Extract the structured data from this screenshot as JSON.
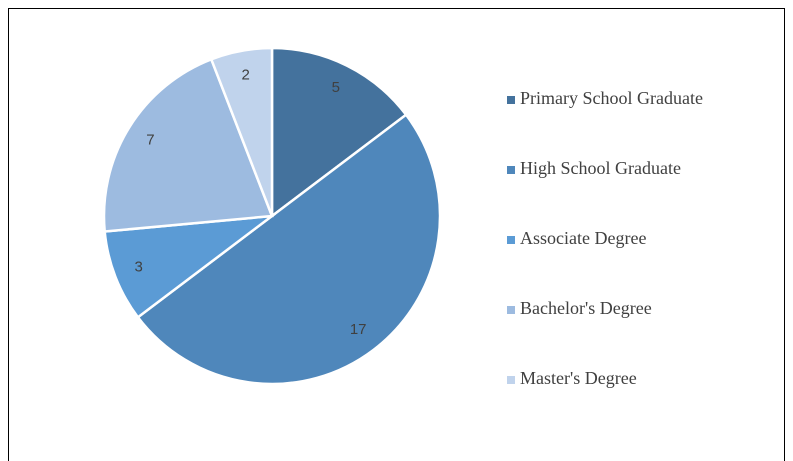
{
  "chart_data": {
    "type": "pie",
    "categories": [
      "Primary School Graduate",
      "High School Graduate",
      "Associate Degree",
      "Bachelor's Degree",
      "Master's Degree"
    ],
    "values": [
      5,
      17,
      3,
      7,
      2
    ],
    "colors": [
      "#44729d",
      "#4f87bb",
      "#5b9bd5",
      "#9dbbe0",
      "#c0d3ec"
    ],
    "legend": "right"
  }
}
